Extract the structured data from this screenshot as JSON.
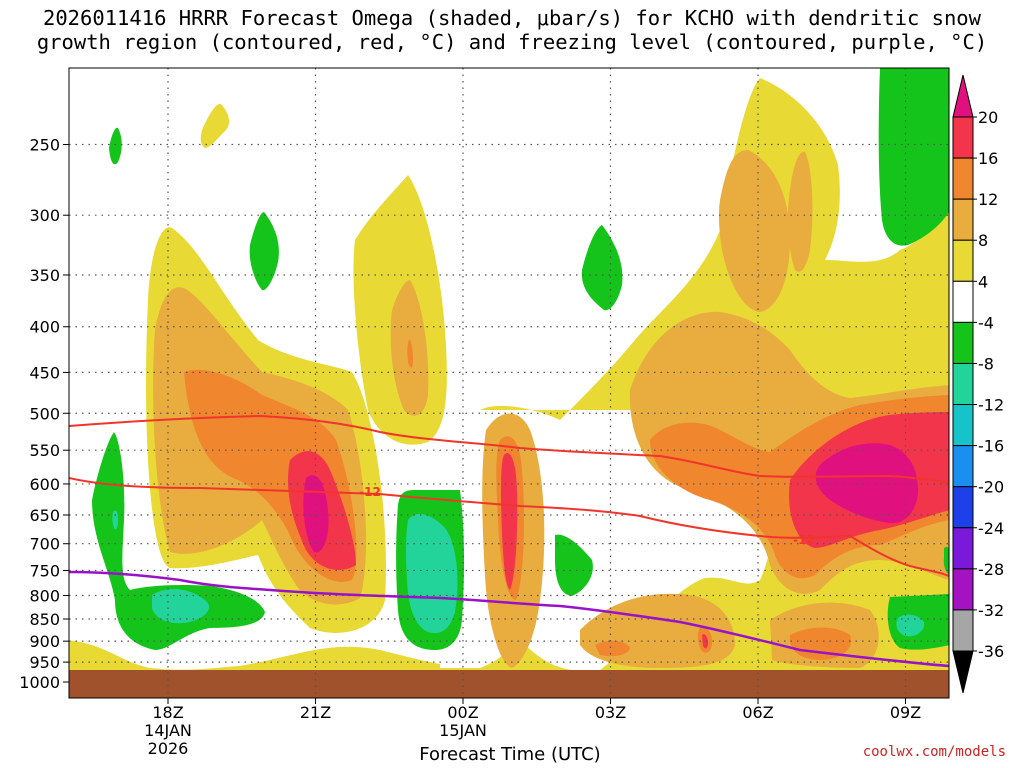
{
  "title_line1": "2026011416 HRRR Forecast Omega (shaded, μbar/s) for KCHO with dendritic snow",
  "title_line2": "growth region (contoured, red, °C) and freezing level (contoured, purple, °C)",
  "credit": "coolwx.com/models",
  "chart_data": {
    "type": "heatmap",
    "xlabel": "Forecast Time (UTC)",
    "ylabel": "",
    "y_scale": "log-pressure (inverted)",
    "ylim": [
      1000,
      200
    ],
    "y_ticks": [
      250,
      300,
      350,
      400,
      450,
      500,
      550,
      600,
      650,
      700,
      750,
      800,
      850,
      900,
      950,
      1000
    ],
    "x_ticks": [
      {
        "label": "18Z",
        "sub1": "14JAN",
        "sub2": "2026"
      },
      {
        "label": "21Z",
        "sub1": "",
        "sub2": ""
      },
      {
        "label": "00Z",
        "sub1": "15JAN",
        "sub2": ""
      },
      {
        "label": "03Z",
        "sub1": "",
        "sub2": ""
      },
      {
        "label": "06Z",
        "sub1": "",
        "sub2": ""
      },
      {
        "label": "09Z",
        "sub1": "",
        "sub2": ""
      }
    ],
    "grid": true,
    "colorbar": {
      "labels": [
        "20",
        "16",
        "12",
        "8",
        "4",
        "-4",
        "-8",
        "-12",
        "-16",
        "-20",
        "-24",
        "-28",
        "-32",
        "-36"
      ],
      "colors": [
        "#e0117f",
        "#f2354a",
        "#f0862e",
        "#e9ac3f",
        "#e8d934",
        "#ffffff",
        "#14c41a",
        "#22d49a",
        "#16c3c9",
        "#1a8ff0",
        "#1d40e8",
        "#7a19d9",
        "#a313c2",
        "#a6a6a6",
        "#000000"
      ]
    },
    "contour_labels": [
      "-12",
      "-12"
    ],
    "series": [
      {
        "name": "dendritic snow growth region (°C)",
        "color": "#e8302c"
      },
      {
        "name": "freezing level (°C)",
        "color": "#9a12c8"
      }
    ],
    "colors": {
      "terrain": "#a0522d",
      "isotherm": "#e8302c",
      "freezing": "#9a12c8"
    }
  }
}
